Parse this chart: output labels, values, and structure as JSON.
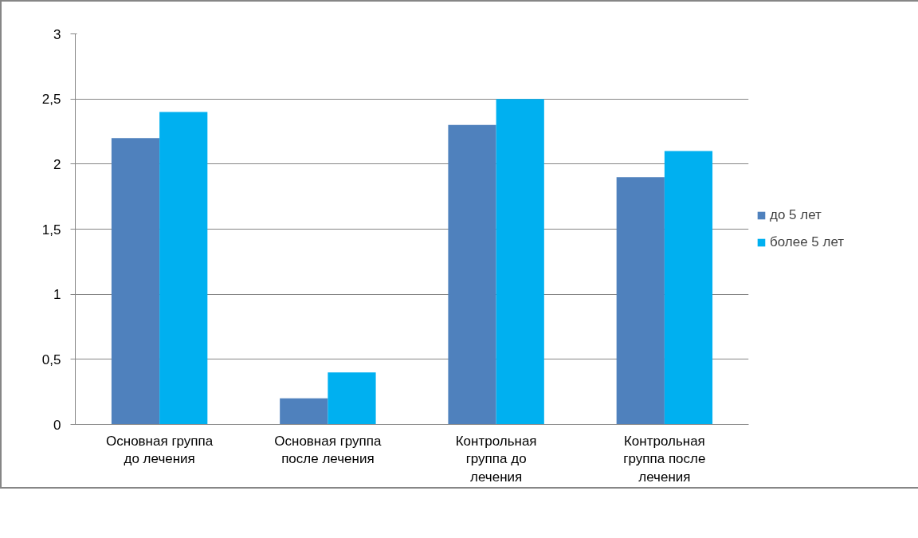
{
  "chart_data": {
    "type": "bar",
    "categories": [
      "Основная группа до лечения",
      "Основная группа после лечения",
      "Контрольная группа до лечения",
      "Контрольная группа после лечения"
    ],
    "series": [
      {
        "name": "до 5 лет",
        "color": "#4f81bd",
        "values": [
          2.2,
          0.2,
          2.3,
          1.9
        ]
      },
      {
        "name": "более 5 лет",
        "color": "#00b0f0",
        "values": [
          2.4,
          0.4,
          2.5,
          2.1
        ]
      }
    ],
    "ylim": [
      0,
      3
    ],
    "yticks": [
      0,
      {
        "value": 0.5,
        "label": "0,5"
      },
      1,
      {
        "value": 1.5,
        "label": "1,5"
      },
      2,
      {
        "value": 2.5,
        "label": "2,5"
      },
      3
    ],
    "grid": "y",
    "legend": "right"
  }
}
